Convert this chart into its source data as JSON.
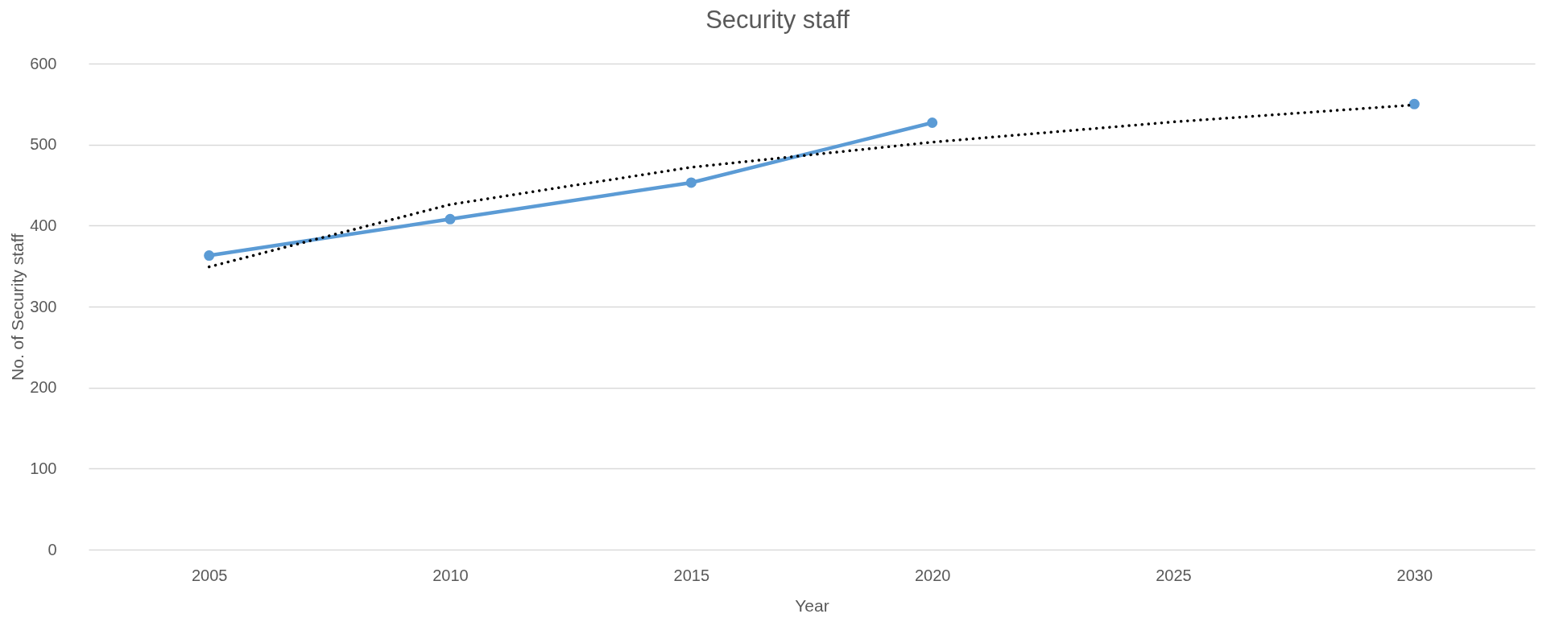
{
  "chart_data": {
    "type": "line",
    "title": "Security staff",
    "xlabel": "Year",
    "ylabel": "No. of Security staff",
    "categories": [
      "2005",
      "2010",
      "2015",
      "2020",
      "2025",
      "2030"
    ],
    "series": [
      {
        "color": "#5b9bd5",
        "values": [
          363,
          408,
          453,
          527,
          null,
          550
        ],
        "marker": "circle",
        "line_style": "solid"
      },
      {
        "type": "line",
        "color": "#000000",
        "values": [
          349,
          426,
          472,
          503,
          528,
          549
        ],
        "marker": "none",
        "line_style": "dotted"
      }
    ],
    "ylim": [
      0,
      600
    ],
    "yticks": [
      0,
      100,
      200,
      300,
      400,
      500,
      600
    ],
    "grid": "y"
  }
}
